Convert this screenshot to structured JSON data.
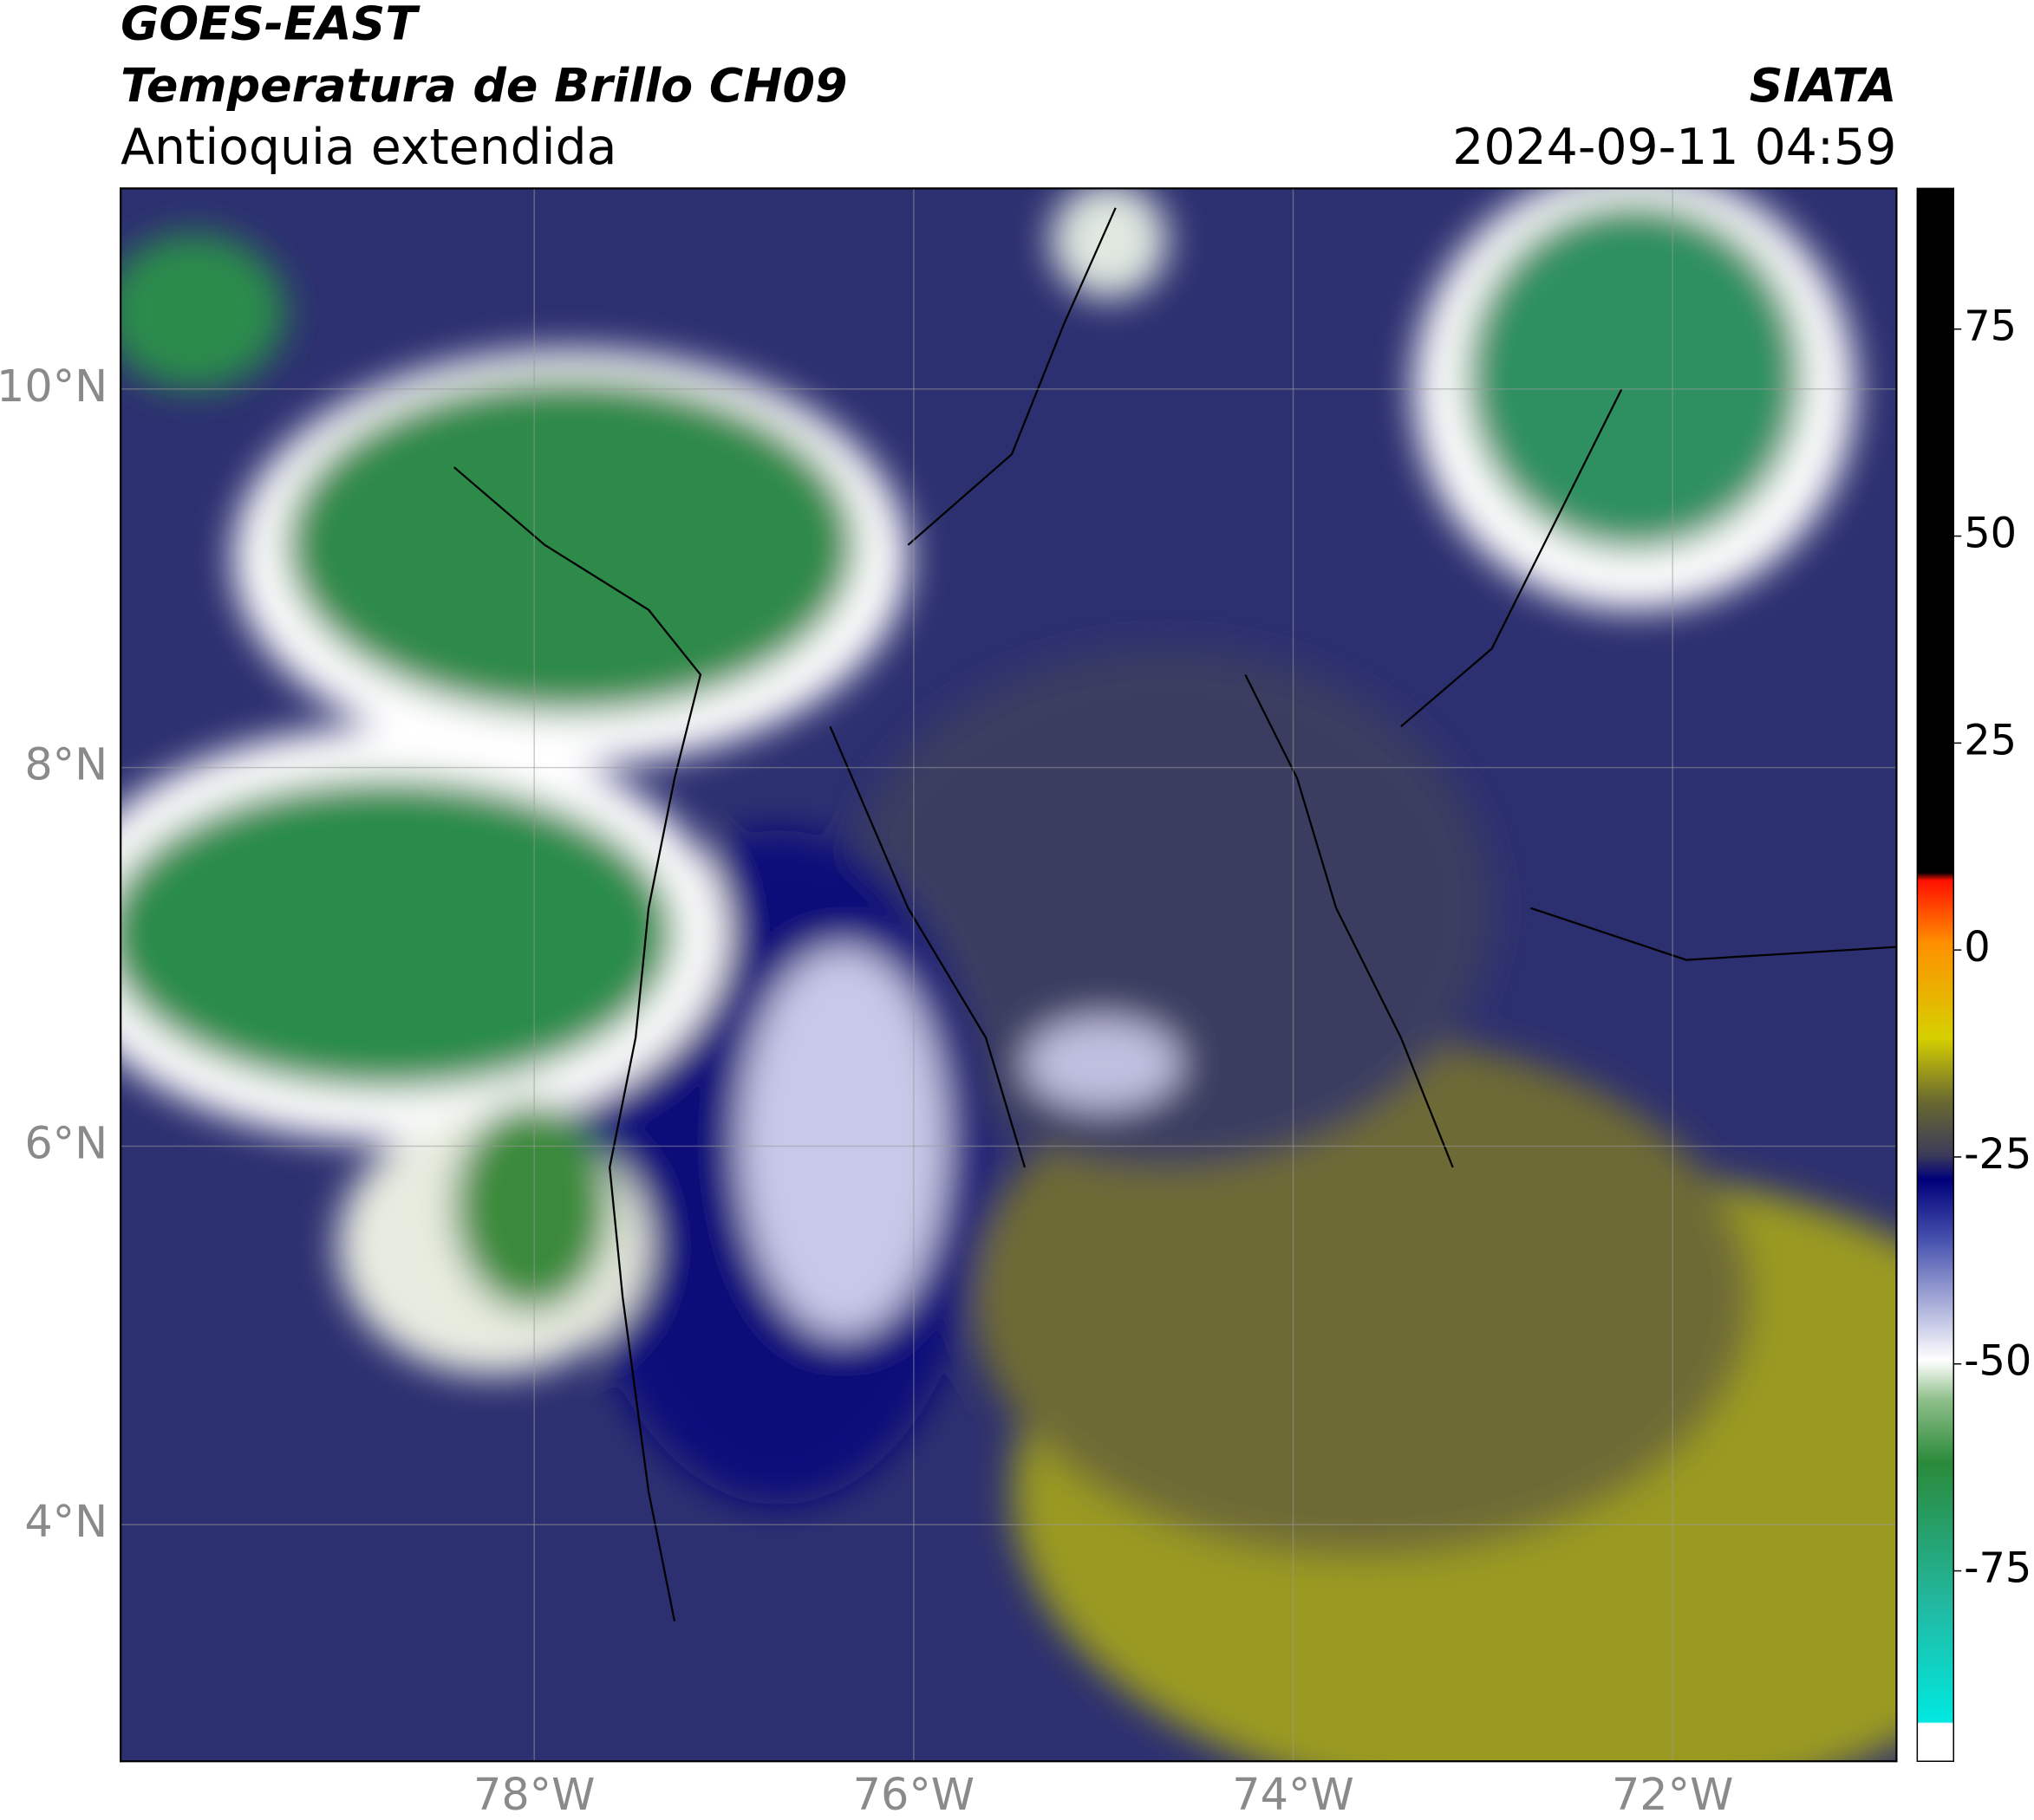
{
  "header": {
    "title_line1": "GOES-EAST",
    "title_line2": "Temperatura de Brillo CH09",
    "subtitle": "Antioquia extendida",
    "agency": "SIATA",
    "timestamp": "2024-09-11 04:59"
  },
  "map": {
    "lon_range": [
      -80.18,
      -70.82
    ],
    "lat_range": [
      2.75,
      11.06
    ],
    "lon_ticks": [
      {
        "value": -78,
        "label": "78°W"
      },
      {
        "value": -76,
        "label": "76°W"
      },
      {
        "value": -74,
        "label": "74°W"
      },
      {
        "value": -72,
        "label": "72°W"
      }
    ],
    "lat_ticks": [
      {
        "value": 10,
        "label": "10°N"
      },
      {
        "value": 8,
        "label": "8°N"
      },
      {
        "value": 6,
        "label": "6°N"
      },
      {
        "value": 4,
        "label": "4°N"
      }
    ],
    "grid": true
  },
  "colorbar": {
    "range": [
      -98,
      92
    ],
    "ticks": [
      75,
      50,
      25,
      0,
      -25,
      -50,
      -75
    ]
  }
}
